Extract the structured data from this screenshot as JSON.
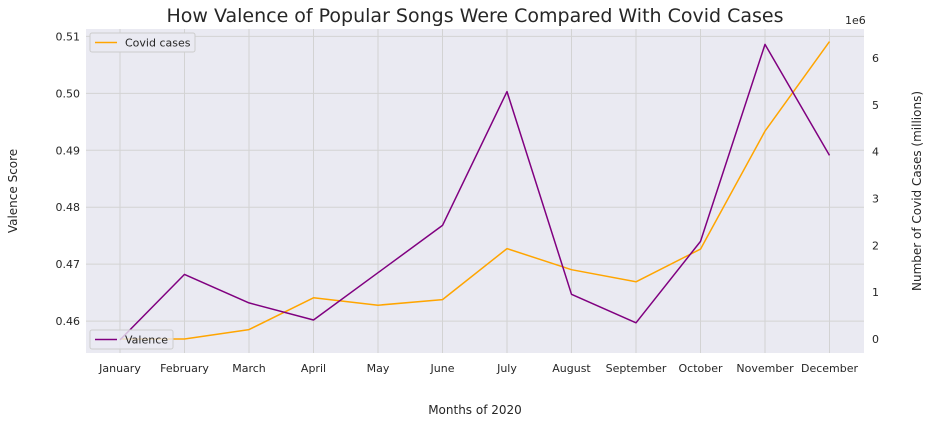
{
  "chart_data": {
    "type": "line",
    "title": "How Valence of Popular Songs Were Compared With Covid Cases",
    "xlabel": "Months of 2020",
    "categories": [
      "January",
      "February",
      "March",
      "April",
      "May",
      "June",
      "July",
      "August",
      "September",
      "October",
      "November",
      "December"
    ],
    "left_axis": {
      "label": "Valence Score",
      "ticks": [
        "0.46",
        "0.47",
        "0.48",
        "0.49",
        "0.50",
        "0.51"
      ],
      "tick_values": [
        0.46,
        0.47,
        0.48,
        0.49,
        0.5,
        0.51
      ],
      "range": [
        0.4544,
        0.5113
      ]
    },
    "right_axis": {
      "label": "Number of Covid Cases (millions)",
      "offset_label": "1e6",
      "ticks": [
        "0",
        "1",
        "2",
        "3",
        "4",
        "5",
        "6"
      ],
      "tick_values": [
        0,
        1,
        2,
        3,
        4,
        5,
        6
      ],
      "range": [
        -0.3,
        6.62
      ],
      "scale_note": "values in millions (x1e6)"
    },
    "series": [
      {
        "name": "Covid cases",
        "axis": "right",
        "color": "#ffa500",
        "values": [
          0.0,
          0.0,
          0.2,
          0.88,
          0.72,
          0.84,
          1.93,
          1.48,
          1.22,
          1.92,
          4.44,
          6.35
        ]
      },
      {
        "name": "Valence",
        "axis": "left",
        "color": "#800080",
        "values": [
          0.4567,
          0.4682,
          0.4632,
          0.4602,
          0.4685,
          0.4768,
          0.5003,
          0.4647,
          0.4597,
          0.474,
          0.5086,
          0.4891
        ]
      }
    ],
    "grid": true,
    "legend": [
      {
        "series": "Covid cases",
        "placement": "top-left"
      },
      {
        "series": "Valence",
        "placement": "bottom-left"
      }
    ]
  }
}
